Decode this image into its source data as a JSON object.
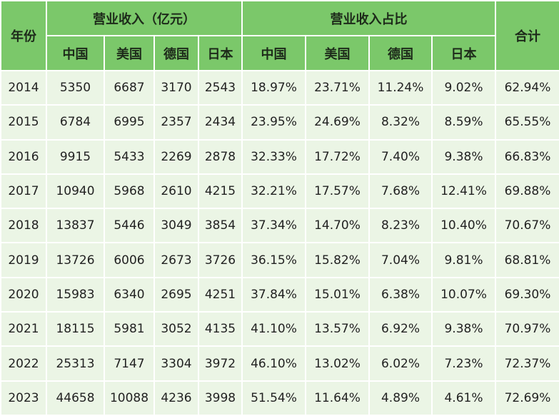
{
  "table": {
    "header": {
      "year": "年份",
      "revenue_group": "营业收入（亿元）",
      "share_group": "营业收入占比",
      "total": "合计",
      "countries": [
        "中国",
        "美国",
        "德国",
        "日本"
      ]
    },
    "rows": [
      [
        "2014",
        "5350",
        "6687",
        "3170",
        "2543",
        "18.97%",
        "23.71%",
        "11.24%",
        "9.02%",
        "62.94%"
      ],
      [
        "2015",
        "6784",
        "6995",
        "2357",
        "2434",
        "23.95%",
        "24.69%",
        "8.32%",
        "8.59%",
        "65.55%"
      ],
      [
        "2016",
        "9915",
        "5433",
        "2269",
        "2878",
        "32.33%",
        "17.72%",
        "7.40%",
        "9.38%",
        "66.83%"
      ],
      [
        "2017",
        "10940",
        "5968",
        "2610",
        "4215",
        "32.21%",
        "17.57%",
        "7.68%",
        "12.41%",
        "69.88%"
      ],
      [
        "2018",
        "13837",
        "5446",
        "3049",
        "3854",
        "37.34%",
        "14.70%",
        "8.23%",
        "10.40%",
        "70.67%"
      ],
      [
        "2019",
        "13726",
        "6006",
        "2673",
        "3726",
        "36.15%",
        "15.82%",
        "7.04%",
        "9.81%",
        "68.81%"
      ],
      [
        "2020",
        "15983",
        "6340",
        "2695",
        "4251",
        "37.84%",
        "15.01%",
        "6.38%",
        "10.07%",
        "69.30%"
      ],
      [
        "2021",
        "18115",
        "5981",
        "3052",
        "4135",
        "41.10%",
        "13.57%",
        "6.92%",
        "9.38%",
        "70.97%"
      ],
      [
        "2022",
        "25313",
        "7147",
        "3304",
        "3972",
        "46.10%",
        "13.02%",
        "6.02%",
        "7.23%",
        "72.37%"
      ],
      [
        "2023",
        "44658",
        "10088",
        "4236",
        "3998",
        "51.54%",
        "11.64%",
        "4.89%",
        "4.61%",
        "72.69%"
      ]
    ]
  }
}
